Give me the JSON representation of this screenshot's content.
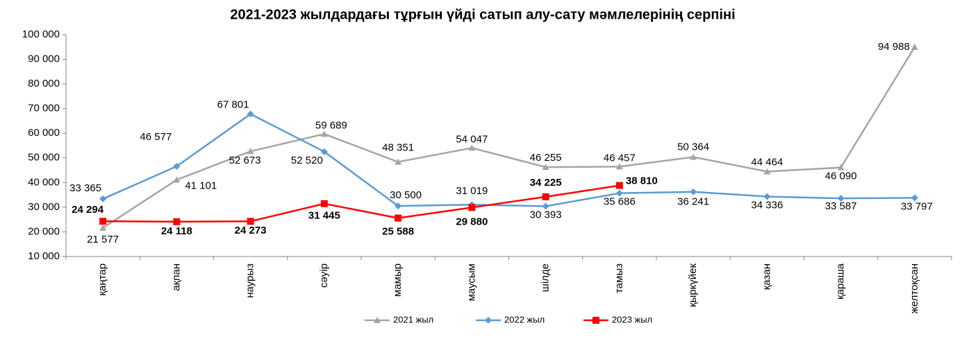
{
  "chart_data": {
    "type": "line",
    "title": "2021-2023 жылдардағы тұрғын үйді сатып алу-сату мәмлелерінің серпіні",
    "categories": [
      "қаңтар",
      "ақпан",
      "наурыз",
      "сәуір",
      "мамыр",
      "маусым",
      "шілде",
      "тамыз",
      "қыркүйек",
      "қазан",
      "қараша",
      "желтоқсан"
    ],
    "series": [
      {
        "name": "2021 жыл",
        "color": "#a5a5a5",
        "marker": "triangle",
        "values": [
          21577,
          41101,
          52673,
          59689,
          48351,
          54047,
          46255,
          46457,
          50364,
          44464,
          46090,
          94988
        ],
        "value_labels": [
          "21 577",
          "41 101",
          "52 673",
          "59 689",
          "48 351",
          "54 047",
          "46 255",
          "46 457",
          "50 364",
          "44 464",
          "46 090",
          "94 988"
        ]
      },
      {
        "name": "2022 жыл",
        "color": "#5b9bd5",
        "marker": "diamond",
        "values": [
          33365,
          46577,
          67801,
          52520,
          30500,
          31019,
          30393,
          35686,
          36241,
          34336,
          33587,
          33797
        ],
        "value_labels": [
          "33 365",
          "46 577",
          "67 801",
          "52 520",
          "30 500",
          "31 019",
          "30 393",
          "35 686",
          "36 241",
          "34 336",
          "33 587",
          "33 797"
        ]
      },
      {
        "name": "2023 жыл",
        "color": "#ff0000",
        "marker": "square",
        "bold_labels": true,
        "values": [
          24294,
          24118,
          24273,
          31445,
          25588,
          29880,
          34225,
          38810,
          null,
          null,
          null,
          null
        ],
        "value_labels": [
          "24 294",
          "24 118",
          "24 273",
          "31 445",
          "25 588",
          "29 880",
          "34 225",
          "38 810",
          null,
          null,
          null,
          null
        ]
      }
    ],
    "ylim": [
      10000,
      100000
    ],
    "yticks": [
      {
        "value": 10000,
        "label": "10 000"
      },
      {
        "value": 20000,
        "label": "20 000"
      },
      {
        "value": 30000,
        "label": "30 000"
      },
      {
        "value": 40000,
        "label": "40 000"
      },
      {
        "value": 50000,
        "label": "50 000"
      },
      {
        "value": 60000,
        "label": "60 000"
      },
      {
        "value": 70000,
        "label": "70 000"
      },
      {
        "value": 80000,
        "label": "80 000"
      },
      {
        "value": 90000,
        "label": "90 000"
      },
      {
        "value": 100000,
        "label": "100 000"
      }
    ],
    "grid": false,
    "legend": "bottom"
  }
}
